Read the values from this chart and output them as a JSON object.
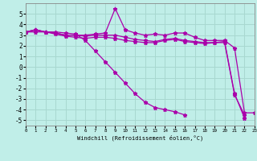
{
  "xlabel": "Windchill (Refroidissement éolien,°C)",
  "background_color": "#c0eee8",
  "grid_color": "#a8d8d0",
  "line_color": "#aa00aa",
  "xlim": [
    0,
    23
  ],
  "ylim": [
    -5.5,
    6
  ],
  "xtick_labels": [
    "0",
    "1",
    "2",
    "3",
    "4",
    "5",
    "6",
    "7",
    "8",
    "9",
    "10",
    "11",
    "12",
    "13",
    "14",
    "15",
    "16",
    "17",
    "18",
    "19",
    "20",
    "21",
    "22",
    "23"
  ],
  "xtick_vals": [
    0,
    1,
    2,
    3,
    4,
    5,
    6,
    7,
    8,
    9,
    10,
    11,
    12,
    13,
    14,
    15,
    16,
    17,
    18,
    19,
    20,
    21,
    22,
    23
  ],
  "ytick_vals": [
    -5,
    -4,
    -3,
    -2,
    -1,
    0,
    1,
    2,
    3,
    4,
    5
  ],
  "series": [
    {
      "x": [
        0,
        1,
        2,
        3,
        4,
        5,
        6,
        7,
        8,
        9,
        10,
        11,
        12,
        13,
        14,
        15,
        16,
        17,
        18,
        19,
        20,
        21,
        22,
        23
      ],
      "y": [
        3.3,
        3.5,
        3.3,
        3.2,
        3.0,
        3.0,
        3.0,
        3.1,
        3.2,
        5.5,
        3.5,
        3.2,
        3.0,
        3.1,
        3.0,
        3.2,
        3.2,
        2.8,
        2.5,
        2.5,
        2.5,
        1.8,
        -4.3,
        -4.3
      ]
    },
    {
      "x": [
        0,
        1,
        2,
        3,
        4,
        5,
        6,
        7,
        8,
        9,
        10,
        11,
        12,
        13,
        14,
        15,
        16,
        17,
        18,
        19,
        20,
        21,
        22
      ],
      "y": [
        3.3,
        3.5,
        3.3,
        3.2,
        3.0,
        3.0,
        2.9,
        3.0,
        3.0,
        3.0,
        2.8,
        2.6,
        2.5,
        2.4,
        2.6,
        2.7,
        2.5,
        2.4,
        2.3,
        2.3,
        2.4,
        -2.5,
        -4.8
      ]
    },
    {
      "x": [
        0,
        1,
        2,
        3,
        4,
        5,
        6,
        7,
        8,
        9,
        10,
        11,
        12,
        13,
        14,
        15,
        16,
        17,
        18,
        19,
        20,
        21,
        22
      ],
      "y": [
        3.3,
        3.5,
        3.3,
        3.1,
        2.9,
        2.8,
        2.7,
        2.8,
        2.8,
        2.7,
        2.5,
        2.4,
        2.3,
        2.3,
        2.5,
        2.6,
        2.4,
        2.3,
        2.2,
        2.3,
        2.3,
        -2.6,
        -4.5
      ]
    },
    {
      "x": [
        0,
        1,
        2,
        3,
        4,
        5,
        6,
        7,
        8,
        9,
        10,
        11,
        12,
        13,
        14,
        15,
        16
      ],
      "y": [
        3.3,
        3.3,
        3.3,
        3.3,
        3.2,
        3.1,
        2.5,
        1.5,
        0.5,
        -0.5,
        -1.5,
        -2.5,
        -3.3,
        -3.8,
        -4.0,
        -4.2,
        -4.5
      ]
    }
  ]
}
